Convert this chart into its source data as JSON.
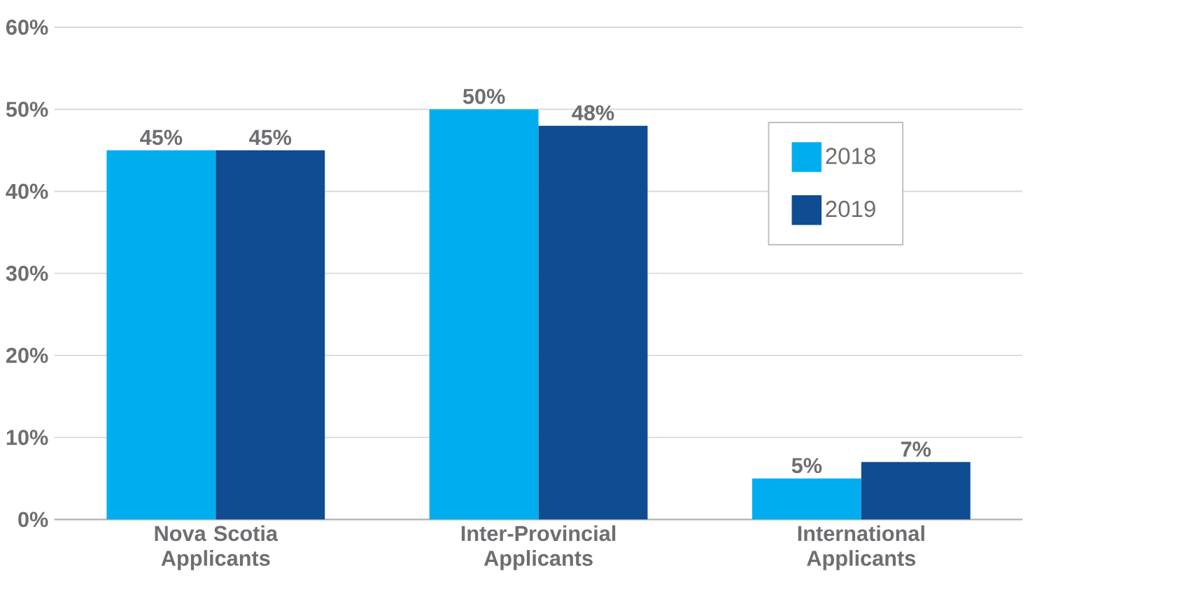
{
  "chart_data": {
    "type": "bar",
    "categories": [
      "Nova Scotia Applicants",
      "Inter-Provincial Applicants",
      "International Applicants"
    ],
    "series": [
      {
        "name": "2018",
        "color": "#00aeef",
        "values": [
          45,
          50,
          5
        ],
        "value_labels": [
          "45%",
          "50%",
          "5%"
        ]
      },
      {
        "name": "2019",
        "color": "#0f4c92",
        "values": [
          45,
          48,
          7
        ],
        "value_labels": [
          "45%",
          "48%",
          "7%"
        ]
      }
    ],
    "ylim": [
      0,
      60
    ],
    "yticks": [
      {
        "value": 0,
        "label": "0%"
      },
      {
        "value": 10,
        "label": "10%"
      },
      {
        "value": 20,
        "label": "20%"
      },
      {
        "value": 30,
        "label": "30%"
      },
      {
        "value": 40,
        "label": "40%"
      },
      {
        "value": 50,
        "label": "50%"
      },
      {
        "value": 60,
        "label": "60%"
      }
    ],
    "grid": "y",
    "legend": "top right"
  }
}
